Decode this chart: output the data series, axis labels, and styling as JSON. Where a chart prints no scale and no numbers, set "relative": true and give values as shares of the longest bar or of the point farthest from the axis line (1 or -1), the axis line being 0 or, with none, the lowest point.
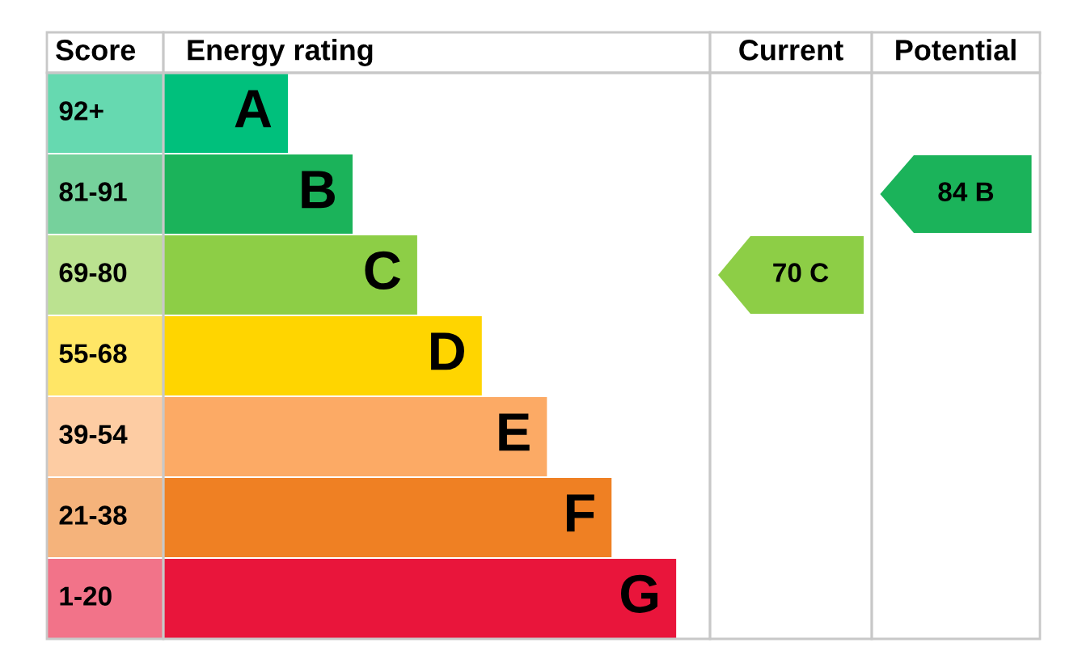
{
  "chart_data": {
    "type": "bar",
    "orientation": "horizontal",
    "relative": true,
    "ylabel": "Score",
    "xlabel": "Energy rating",
    "categories": [
      "92+",
      "81-91",
      "69-80",
      "55-68",
      "39-54",
      "21-38",
      "1-20"
    ],
    "values": [
      0.243,
      0.369,
      0.495,
      0.621,
      0.748,
      0.874,
      1
    ],
    "colors": [
      "#00c07c",
      "#1bb35a",
      "#8dce46",
      "#ffd500",
      "#fcaa65",
      "#ef8023",
      "#e9153b"
    ],
    "annotations": [
      {
        "text": "A",
        "y": "92+"
      },
      {
        "text": "B",
        "y": "81-91"
      },
      {
        "text": "C",
        "y": "69-80"
      },
      {
        "text": "D",
        "y": "55-68"
      },
      {
        "text": "E",
        "y": "39-54"
      },
      {
        "text": "F",
        "y": "21-38"
      },
      {
        "text": "G",
        "y": "1-20"
      },
      "Current",
      "70 C",
      "Potential",
      "84 B"
    ]
  }
}
